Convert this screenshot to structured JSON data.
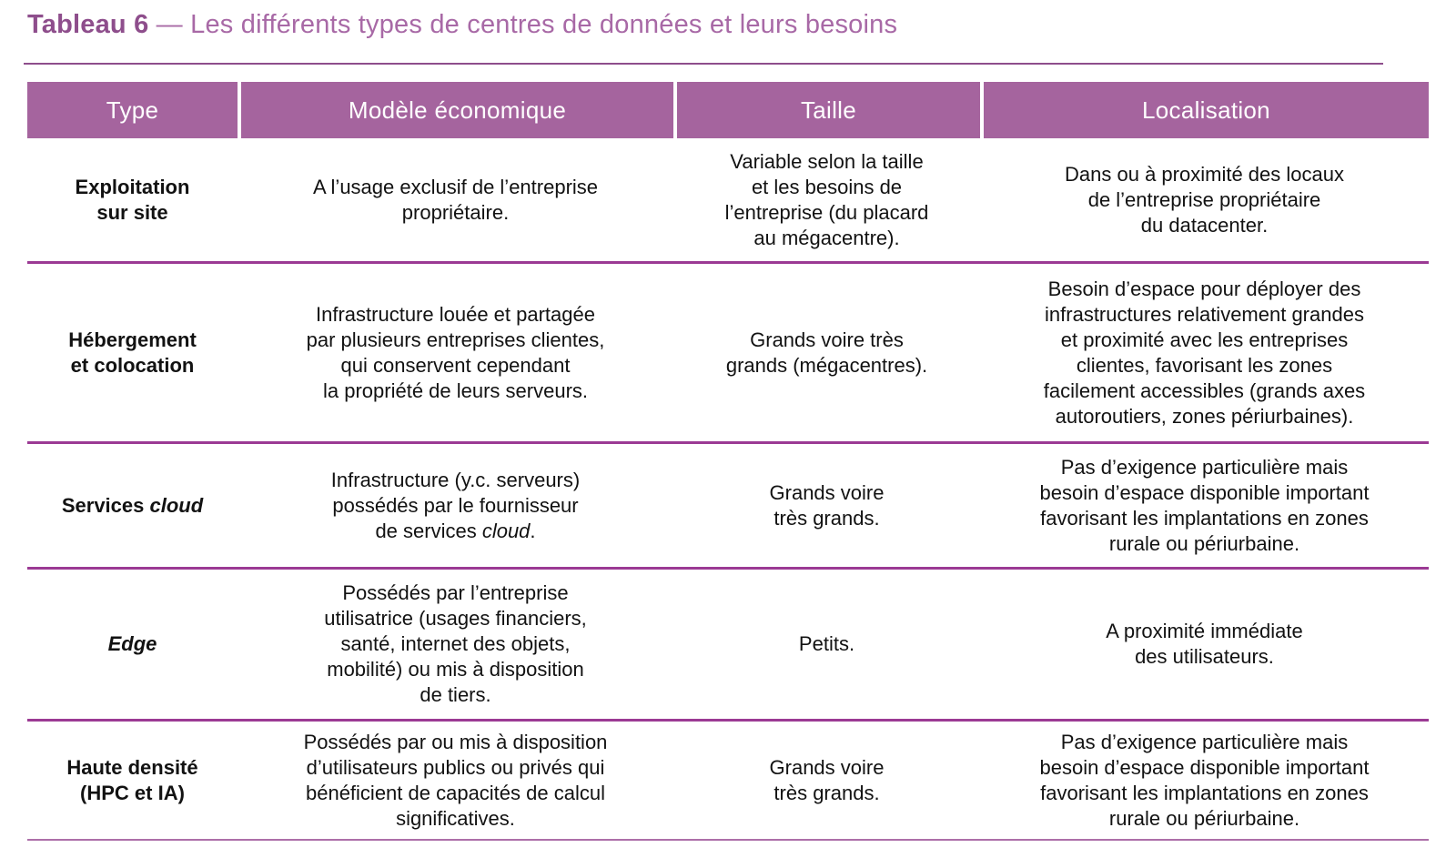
{
  "title": {
    "label": "Tableau 6",
    "separator": " — ",
    "text": "Les différents types de centres de données et leurs besoins"
  },
  "colors": {
    "header_bg": "#A5649E",
    "header_text": "#FFFFFF",
    "row_separator": "#9B3A94",
    "bottom_rule": "#AD6FA9",
    "title_accent": "#8E4E8C",
    "title_light": "#A869A6",
    "body_text": "#121212"
  },
  "table": {
    "columns": [
      "Type",
      "Modèle économique",
      "Taille",
      "Localisation"
    ],
    "rows": [
      {
        "type": [
          {
            "t": "Exploitation\nsur site",
            "i": false
          }
        ],
        "modele": [
          {
            "t": "A l’usage exclusif de l’entreprise\npropriétaire.",
            "i": false
          }
        ],
        "taille": [
          {
            "t": "Variable selon la taille\net les besoins de\nl’entreprise (du placard\nau mégacentre).",
            "i": false
          }
        ],
        "localisation": [
          {
            "t": "Dans ou à proximité des locaux\nde l’entreprise propriétaire\ndu datacenter.",
            "i": false
          }
        ]
      },
      {
        "type": [
          {
            "t": "Hébergement\net colocation",
            "i": false
          }
        ],
        "modele": [
          {
            "t": "Infrastructure louée et partagée\npar plusieurs entreprises clientes,\nqui conservent cependant\nla propriété de leurs serveurs.",
            "i": false
          }
        ],
        "taille": [
          {
            "t": "Grands voire très\ngrands (mégacentres).",
            "i": false
          }
        ],
        "localisation": [
          {
            "t": "Besoin d’espace pour déployer des\ninfrastructures relativement grandes\net proximité avec les entreprises\nclientes, favorisant les zones\nfacilement accessibles (grands axes\nautoroutiers, zones périurbaines).",
            "i": false
          }
        ]
      },
      {
        "type": [
          {
            "t": "Services ",
            "i": false
          },
          {
            "t": "cloud",
            "i": true
          }
        ],
        "modele": [
          {
            "t": "Infrastructure (y.c. serveurs)\npossédés par le fournisseur\nde services ",
            "i": false
          },
          {
            "t": "cloud",
            "i": true
          },
          {
            "t": ".",
            "i": false
          }
        ],
        "taille": [
          {
            "t": "Grands voire\ntrès grands.",
            "i": false
          }
        ],
        "localisation": [
          {
            "t": "Pas d’exigence particulière mais\nbesoin d’espace disponible important\nfavorisant les implantations en zones\nrurale ou périurbaine.",
            "i": false
          }
        ]
      },
      {
        "type": [
          {
            "t": "Edge",
            "i": true
          }
        ],
        "modele": [
          {
            "t": "Possédés par l’entreprise\nutilisatrice (usages financiers,\nsanté, internet des objets,\nmobilité) ou mis à disposition\nde tiers.",
            "i": false
          }
        ],
        "taille": [
          {
            "t": "Petits.",
            "i": false
          }
        ],
        "localisation": [
          {
            "t": "A proximité immédiate\ndes utilisateurs.",
            "i": false
          }
        ]
      },
      {
        "type": [
          {
            "t": "Haute densité\n(HPC et IA)",
            "i": false
          }
        ],
        "modele": [
          {
            "t": "Possédés par ou mis à disposition\nd’utilisateurs publics ou privés qui\nbénéficient de capacités de calcul\nsignificatives.",
            "i": false
          }
        ],
        "taille": [
          {
            "t": "Grands voire\ntrès grands.",
            "i": false
          }
        ],
        "localisation": [
          {
            "t": "Pas d’exigence particulière mais\nbesoin d’espace disponible important\nfavorisant les implantations en zones\nrurale ou périurbaine.",
            "i": false
          }
        ]
      }
    ]
  }
}
